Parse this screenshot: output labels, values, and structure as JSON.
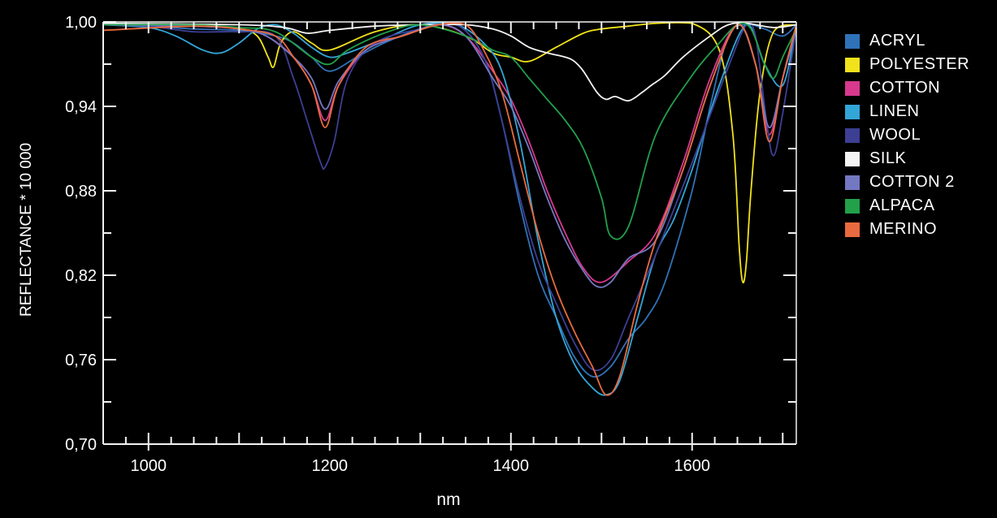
{
  "chart_data": {
    "type": "line",
    "title": "",
    "xlabel": "nm",
    "ylabel": "REFLECTANCE * 10 000",
    "xlim": [
      950,
      1715
    ],
    "ylim": [
      0.7,
      1.0
    ],
    "x_ticks": [
      1000,
      1200,
      1400,
      1600
    ],
    "x_tick_labels": [
      "1000",
      "1200",
      "1400",
      "1600"
    ],
    "y_ticks": [
      0.7,
      0.76,
      0.82,
      0.88,
      0.94,
      1.0
    ],
    "y_tick_labels": [
      "0,70",
      "0,76",
      "0,82",
      "0,88",
      "0,94",
      "1,00"
    ],
    "grid": false,
    "legend_position": "right",
    "background": "#000000",
    "series": [
      {
        "name": "ACRYL",
        "color": "#2f72b8",
        "x": [
          950,
          1000,
          1050,
          1100,
          1140,
          1160,
          1180,
          1200,
          1230,
          1260,
          1300,
          1340,
          1370,
          1390,
          1410,
          1430,
          1450,
          1470,
          1490,
          1510,
          1530,
          1550,
          1570,
          1600,
          1620,
          1640,
          1660,
          1680,
          1700,
          1715
        ],
        "y": [
          0.998,
          0.997,
          0.995,
          0.994,
          0.99,
          0.985,
          0.975,
          0.965,
          0.975,
          0.985,
          0.995,
          0.998,
          0.975,
          0.93,
          0.87,
          0.82,
          0.79,
          0.762,
          0.748,
          0.755,
          0.775,
          0.79,
          0.815,
          0.88,
          0.94,
          0.99,
          0.998,
          0.995,
          0.99,
          0.998
        ]
      },
      {
        "name": "POLYESTER",
        "color": "#f2e21b",
        "x": [
          950,
          1050,
          1100,
          1120,
          1132,
          1138,
          1146,
          1160,
          1180,
          1200,
          1250,
          1300,
          1350,
          1380,
          1400,
          1420,
          1450,
          1480,
          1500,
          1530,
          1560,
          1600,
          1630,
          1645,
          1652,
          1656,
          1660,
          1665,
          1675,
          1690,
          1715
        ],
        "y": [
          0.998,
          0.998,
          0.995,
          0.99,
          0.975,
          0.968,
          0.985,
          0.993,
          0.985,
          0.98,
          0.993,
          0.998,
          0.99,
          0.978,
          0.975,
          0.972,
          0.982,
          0.992,
          0.995,
          0.997,
          0.999,
          0.999,
          0.98,
          0.92,
          0.84,
          0.815,
          0.83,
          0.88,
          0.95,
          0.993,
          0.998
        ]
      },
      {
        "name": "COTTON",
        "color": "#d8388e",
        "x": [
          950,
          1050,
          1100,
          1130,
          1160,
          1180,
          1195,
          1210,
          1240,
          1280,
          1320,
          1350,
          1380,
          1400,
          1420,
          1440,
          1460,
          1480,
          1500,
          1530,
          1560,
          1590,
          1620,
          1650,
          1670,
          1685,
          1700,
          1715
        ],
        "y": [
          0.998,
          0.997,
          0.995,
          0.99,
          0.975,
          0.955,
          0.93,
          0.955,
          0.98,
          0.99,
          0.998,
          0.99,
          0.965,
          0.945,
          0.915,
          0.88,
          0.85,
          0.825,
          0.815,
          0.83,
          0.85,
          0.9,
          0.96,
          0.998,
          0.97,
          0.92,
          0.96,
          0.995
        ]
      },
      {
        "name": "LINEN",
        "color": "#33a6d8",
        "x": [
          950,
          1000,
          1030,
          1060,
          1080,
          1100,
          1120,
          1140,
          1160,
          1180,
          1200,
          1220,
          1260,
          1300,
          1340,
          1370,
          1390,
          1410,
          1430,
          1450,
          1470,
          1490,
          1505,
          1520,
          1540,
          1560,
          1580,
          1600,
          1630,
          1660,
          1680,
          1700,
          1715
        ],
        "y": [
          0.998,
          0.996,
          0.99,
          0.98,
          0.978,
          0.985,
          0.995,
          0.998,
          0.992,
          0.982,
          0.975,
          0.978,
          0.988,
          0.998,
          0.998,
          0.985,
          0.965,
          0.915,
          0.845,
          0.79,
          0.757,
          0.74,
          0.735,
          0.745,
          0.79,
          0.835,
          0.86,
          0.895,
          0.955,
          0.998,
          0.97,
          0.955,
          0.998
        ]
      },
      {
        "name": "WOOL",
        "color": "#3c3f93",
        "x": [
          950,
          1000,
          1050,
          1100,
          1140,
          1160,
          1175,
          1190,
          1195,
          1205,
          1220,
          1250,
          1300,
          1340,
          1370,
          1390,
          1410,
          1430,
          1450,
          1470,
          1490,
          1510,
          1530,
          1560,
          1600,
          1640,
          1660,
          1670,
          1682,
          1690,
          1700,
          1715
        ],
        "y": [
          0.998,
          0.997,
          0.993,
          0.993,
          0.99,
          0.96,
          0.93,
          0.9,
          0.897,
          0.915,
          0.96,
          0.985,
          0.995,
          0.998,
          0.975,
          0.93,
          0.875,
          0.83,
          0.8,
          0.772,
          0.753,
          0.76,
          0.79,
          0.835,
          0.9,
          0.968,
          0.998,
          0.99,
          0.93,
          0.905,
          0.935,
          0.995
        ]
      },
      {
        "name": "SILK",
        "color": "#f4f4f4",
        "x": [
          950,
          1100,
          1150,
          1175,
          1200,
          1250,
          1300,
          1350,
          1380,
          1400,
          1420,
          1440,
          1460,
          1470,
          1480,
          1495,
          1505,
          1515,
          1530,
          1545,
          1555,
          1570,
          1590,
          1620,
          1640,
          1660,
          1690,
          1715
        ],
        "y": [
          0.999,
          0.998,
          0.996,
          0.992,
          0.994,
          0.997,
          0.998,
          0.998,
          0.995,
          0.99,
          0.982,
          0.978,
          0.975,
          0.972,
          0.965,
          0.95,
          0.945,
          0.947,
          0.944,
          0.95,
          0.955,
          0.962,
          0.975,
          0.99,
          0.998,
          0.999,
          0.996,
          0.998
        ]
      },
      {
        "name": "COTTON 2",
        "color": "#7478c2",
        "x": [
          950,
          1050,
          1100,
          1130,
          1160,
          1180,
          1195,
          1210,
          1240,
          1280,
          1320,
          1350,
          1380,
          1400,
          1420,
          1440,
          1460,
          1480,
          1495,
          1510,
          1530,
          1560,
          1590,
          1620,
          1650,
          1670,
          1685,
          1700,
          1715
        ],
        "y": [
          0.998,
          0.997,
          0.995,
          0.99,
          0.975,
          0.96,
          0.938,
          0.958,
          0.98,
          0.99,
          0.998,
          0.99,
          0.96,
          0.94,
          0.91,
          0.875,
          0.845,
          0.823,
          0.812,
          0.815,
          0.832,
          0.845,
          0.895,
          0.955,
          0.998,
          0.97,
          0.925,
          0.96,
          0.995
        ]
      },
      {
        "name": "ALPACA",
        "color": "#22a04a",
        "x": [
          950,
          1050,
          1100,
          1140,
          1180,
          1200,
          1220,
          1260,
          1300,
          1350,
          1380,
          1400,
          1420,
          1440,
          1460,
          1480,
          1500,
          1510,
          1530,
          1560,
          1600,
          1630,
          1650,
          1665,
          1680,
          1690,
          1700,
          1715
        ],
        "y": [
          0.998,
          0.998,
          0.996,
          0.993,
          0.975,
          0.97,
          0.98,
          0.992,
          0.998,
          0.99,
          0.98,
          0.975,
          0.96,
          0.945,
          0.93,
          0.91,
          0.875,
          0.848,
          0.855,
          0.92,
          0.962,
          0.985,
          0.998,
          0.995,
          0.97,
          0.96,
          0.975,
          0.995
        ]
      },
      {
        "name": "MERINO",
        "color": "#ea6a3f",
        "x": [
          950,
          1050,
          1100,
          1140,
          1160,
          1180,
          1195,
          1210,
          1240,
          1280,
          1320,
          1350,
          1370,
          1390,
          1410,
          1430,
          1450,
          1470,
          1490,
          1505,
          1520,
          1540,
          1560,
          1590,
          1620,
          1650,
          1670,
          1685,
          1700,
          1715
        ],
        "y": [
          0.994,
          0.997,
          0.995,
          0.99,
          0.975,
          0.955,
          0.925,
          0.955,
          0.982,
          0.99,
          0.998,
          0.998,
          0.98,
          0.95,
          0.9,
          0.85,
          0.81,
          0.78,
          0.755,
          0.735,
          0.748,
          0.8,
          0.845,
          0.895,
          0.955,
          0.998,
          0.97,
          0.915,
          0.96,
          0.998
        ]
      }
    ]
  }
}
